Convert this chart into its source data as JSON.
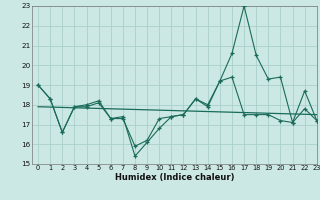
{
  "series1_y": [
    19.0,
    18.3,
    16.6,
    17.9,
    17.9,
    18.1,
    17.3,
    17.4,
    15.4,
    16.1,
    16.8,
    17.4,
    17.5,
    18.3,
    17.9,
    19.2,
    19.4,
    17.5,
    17.5,
    17.5,
    17.2,
    17.1,
    17.8,
    17.2
  ],
  "series2_y": [
    19.0,
    18.3,
    16.6,
    17.9,
    18.0,
    18.2,
    17.3,
    17.3,
    15.9,
    16.2,
    17.3,
    17.4,
    17.5,
    18.3,
    18.0,
    19.2,
    20.6,
    23.0,
    20.5,
    19.3,
    19.4,
    17.1,
    18.7,
    17.2
  ],
  "trend_x": [
    0,
    23
  ],
  "trend_y": [
    17.9,
    17.5
  ],
  "line_color": "#1a6b5a",
  "bg_color": "#cce8e4",
  "grid_color": "#aacfcb",
  "xlabel": "Humidex (Indice chaleur)",
  "ylim": [
    15,
    23
  ],
  "xlim": [
    -0.5,
    23
  ],
  "yticks": [
    15,
    16,
    17,
    18,
    19,
    20,
    21,
    22,
    23
  ],
  "xticks": [
    0,
    1,
    2,
    3,
    4,
    5,
    6,
    7,
    8,
    9,
    10,
    11,
    12,
    13,
    14,
    15,
    16,
    17,
    18,
    19,
    20,
    21,
    22,
    23
  ]
}
